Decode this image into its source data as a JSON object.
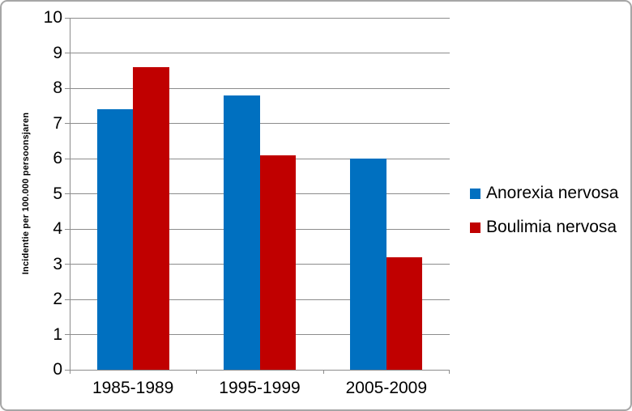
{
  "chart_data": {
    "type": "bar",
    "title": "",
    "xlabel": "",
    "ylabel": "Incidentie per 100.000 persoonsjaren",
    "categories": [
      "1985-1989",
      "1995-1999",
      "2005-2009"
    ],
    "series": [
      {
        "name": "Anorexia nervosa",
        "color": "#0070C0",
        "values": [
          7.4,
          7.8,
          6.0
        ]
      },
      {
        "name": "Boulimia nervosa",
        "color": "#C00000",
        "values": [
          8.6,
          6.1,
          3.2
        ]
      }
    ],
    "ylim": [
      0,
      10
    ],
    "yticks": [
      0,
      1,
      2,
      3,
      4,
      5,
      6,
      7,
      8,
      9,
      10
    ],
    "grid": true,
    "legend_position": "right"
  },
  "colors": {
    "background": "#FFFFFF",
    "gridline": "#8C8C8C",
    "axis": "#8C8C8C",
    "border": "#A6A6A6",
    "text": "#000000"
  }
}
